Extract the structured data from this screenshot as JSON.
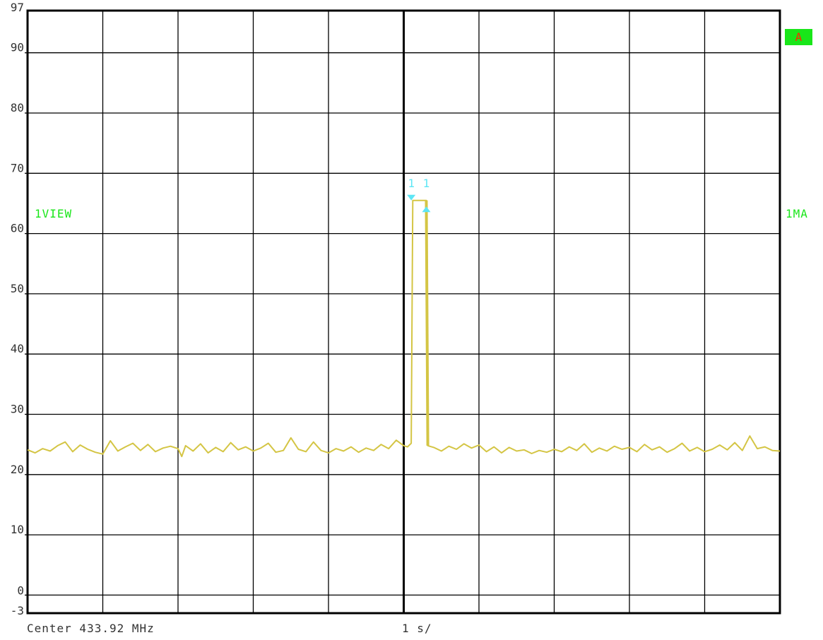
{
  "labels": {
    "view": "1VIEW",
    "mode": "1MA",
    "trace_badge": "A",
    "center": "Center 433.92 MHz",
    "sweep": "1 s/",
    "marker_a": "1",
    "marker_b": "1"
  },
  "colors": {
    "trace": "#d4c544",
    "grid": "#000000",
    "marker": "#5ee6f5",
    "annotation": "#19e619",
    "badge_bg": "#19e619",
    "badge_text": "#ff2a00"
  },
  "chart_data": {
    "type": "line",
    "x_range": [
      0,
      10
    ],
    "x_divisions": 10,
    "ylim": [
      -3,
      97
    ],
    "y_ticks": [
      {
        "value": 97,
        "label": "97"
      },
      {
        "value": 90,
        "label": "90"
      },
      {
        "value": 80,
        "label": "80"
      },
      {
        "value": 70,
        "label": "70"
      },
      {
        "value": 60,
        "label": "60"
      },
      {
        "value": 50,
        "label": "50"
      },
      {
        "value": 40,
        "label": "40"
      },
      {
        "value": 30,
        "label": "30"
      },
      {
        "value": 20,
        "label": "20"
      },
      {
        "value": 10,
        "label": "10"
      },
      {
        "value": 0,
        "label": "0"
      },
      {
        "value": -3,
        "label": "-3"
      }
    ],
    "grid": true,
    "series": [
      {
        "points": [
          [
            0.0,
            24.1
          ],
          [
            0.1,
            23.6
          ],
          [
            0.2,
            24.3
          ],
          [
            0.3,
            23.9
          ],
          [
            0.4,
            24.8
          ],
          [
            0.5,
            25.4
          ],
          [
            0.6,
            23.8
          ],
          [
            0.7,
            24.9
          ],
          [
            0.8,
            24.2
          ],
          [
            0.9,
            23.7
          ],
          [
            1.0,
            23.4
          ],
          [
            1.1,
            25.6
          ],
          [
            1.2,
            23.9
          ],
          [
            1.3,
            24.6
          ],
          [
            1.4,
            25.2
          ],
          [
            1.5,
            24.0
          ],
          [
            1.6,
            25.0
          ],
          [
            1.7,
            23.8
          ],
          [
            1.8,
            24.4
          ],
          [
            1.9,
            24.7
          ],
          [
            2.0,
            24.3
          ],
          [
            2.05,
            23.0
          ],
          [
            2.1,
            24.8
          ],
          [
            2.2,
            23.9
          ],
          [
            2.3,
            25.1
          ],
          [
            2.4,
            23.6
          ],
          [
            2.5,
            24.5
          ],
          [
            2.6,
            23.8
          ],
          [
            2.7,
            25.3
          ],
          [
            2.8,
            24.1
          ],
          [
            2.9,
            24.6
          ],
          [
            3.0,
            23.9
          ],
          [
            3.1,
            24.4
          ],
          [
            3.2,
            25.2
          ],
          [
            3.3,
            23.7
          ],
          [
            3.4,
            24.0
          ],
          [
            3.5,
            26.1
          ],
          [
            3.6,
            24.2
          ],
          [
            3.7,
            23.8
          ],
          [
            3.8,
            25.4
          ],
          [
            3.9,
            24.0
          ],
          [
            4.0,
            23.6
          ],
          [
            4.1,
            24.3
          ],
          [
            4.2,
            23.9
          ],
          [
            4.3,
            24.6
          ],
          [
            4.4,
            23.7
          ],
          [
            4.5,
            24.4
          ],
          [
            4.6,
            24.0
          ],
          [
            4.7,
            25.0
          ],
          [
            4.8,
            24.3
          ],
          [
            4.9,
            25.7
          ],
          [
            5.0,
            24.8
          ],
          [
            5.05,
            24.6
          ],
          [
            5.1,
            25.2
          ],
          [
            5.12,
            65.5
          ],
          [
            5.25,
            65.5
          ],
          [
            5.3,
            65.5
          ],
          [
            5.32,
            24.8
          ],
          [
            5.4,
            24.5
          ],
          [
            5.5,
            23.9
          ],
          [
            5.6,
            24.7
          ],
          [
            5.7,
            24.2
          ],
          [
            5.8,
            25.1
          ],
          [
            5.9,
            24.4
          ],
          [
            6.0,
            24.9
          ],
          [
            6.1,
            23.8
          ],
          [
            6.2,
            24.6
          ],
          [
            6.3,
            23.6
          ],
          [
            6.4,
            24.5
          ],
          [
            6.5,
            23.9
          ],
          [
            6.6,
            24.1
          ],
          [
            6.7,
            23.5
          ],
          [
            6.8,
            24.0
          ],
          [
            6.9,
            23.7
          ],
          [
            7.0,
            24.2
          ],
          [
            7.1,
            23.8
          ],
          [
            7.2,
            24.6
          ],
          [
            7.3,
            24.0
          ],
          [
            7.4,
            25.1
          ],
          [
            7.5,
            23.7
          ],
          [
            7.6,
            24.4
          ],
          [
            7.7,
            23.9
          ],
          [
            7.8,
            24.7
          ],
          [
            7.9,
            24.2
          ],
          [
            8.0,
            24.5
          ],
          [
            8.1,
            23.8
          ],
          [
            8.2,
            25.0
          ],
          [
            8.3,
            24.1
          ],
          [
            8.4,
            24.6
          ],
          [
            8.5,
            23.7
          ],
          [
            8.6,
            24.3
          ],
          [
            8.7,
            25.2
          ],
          [
            8.8,
            23.9
          ],
          [
            8.9,
            24.5
          ],
          [
            9.0,
            23.8
          ],
          [
            9.1,
            24.2
          ],
          [
            9.2,
            24.9
          ],
          [
            9.3,
            24.1
          ],
          [
            9.4,
            25.3
          ],
          [
            9.5,
            24.0
          ],
          [
            9.6,
            26.4
          ],
          [
            9.7,
            24.3
          ],
          [
            9.8,
            24.6
          ],
          [
            9.9,
            24.0
          ],
          [
            10.0,
            23.9
          ]
        ]
      }
    ],
    "markers": [
      {
        "label": "1",
        "x": 5.1,
        "y": 65.5,
        "shape": "down"
      },
      {
        "label": "1",
        "x": 5.3,
        "y": 64.5,
        "shape": "up"
      }
    ]
  }
}
